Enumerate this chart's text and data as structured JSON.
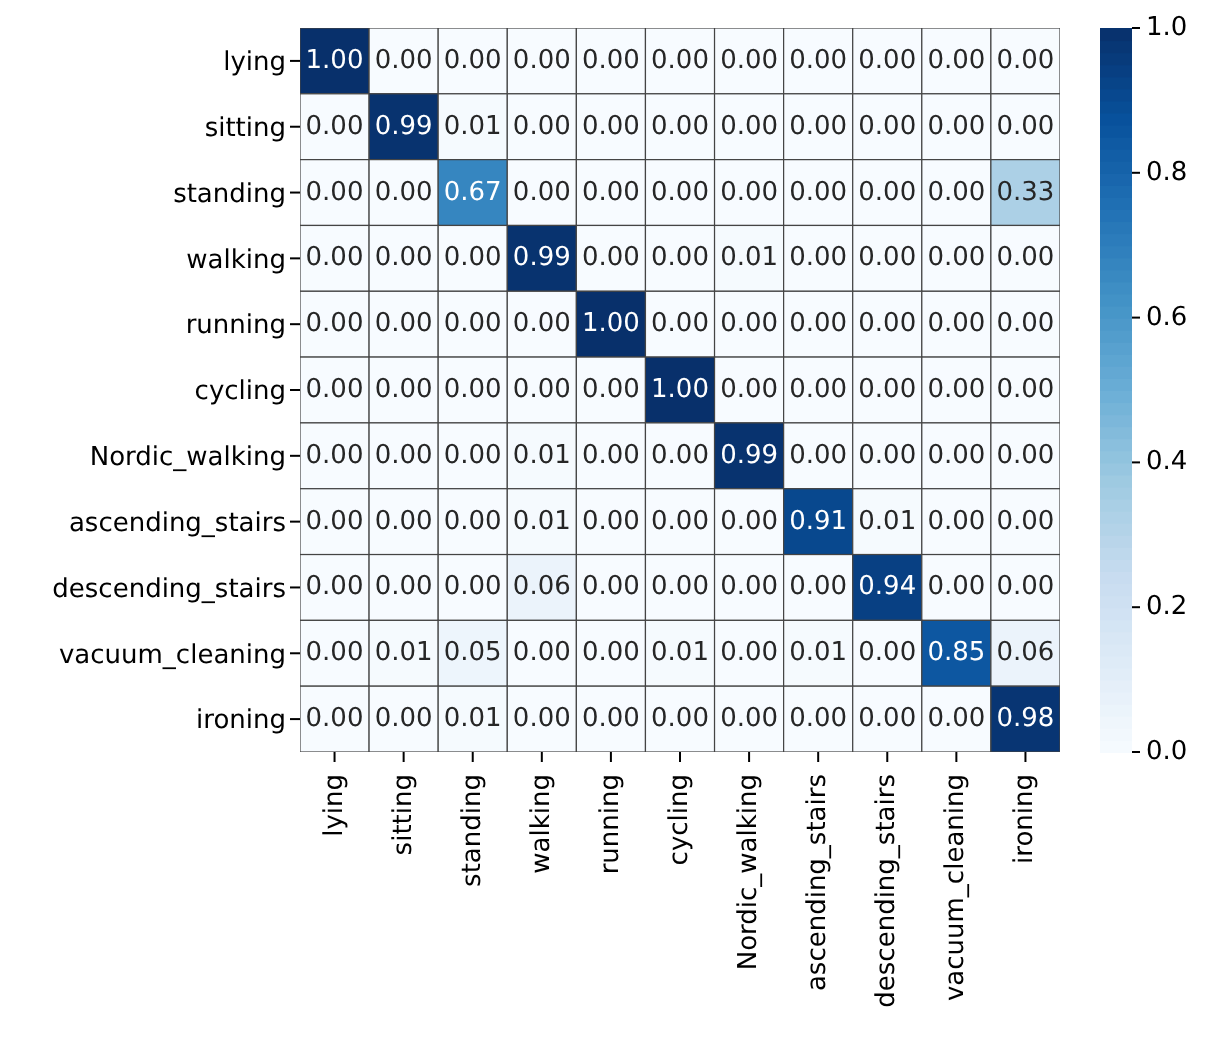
{
  "chart_data": {
    "type": "heatmap",
    "categories": [
      "lying",
      "sitting",
      "standing",
      "walking",
      "running",
      "cycling",
      "Nordic_walking",
      "ascending_stairs",
      "descending_stairs",
      "vacuum_cleaning",
      "ironing"
    ],
    "y_categories": [
      "lying",
      "sitting",
      "standing",
      "walking",
      "running",
      "cycling",
      "Nordic_walking",
      "ascending_stairs",
      "descending_stairs",
      "vacuum_cleaning",
      "ironing"
    ],
    "cells": [
      [
        1.0,
        0.0,
        0.0,
        0.0,
        0.0,
        0.0,
        0.0,
        0.0,
        0.0,
        0.0,
        0.0
      ],
      [
        0.0,
        0.99,
        0.01,
        0.0,
        0.0,
        0.0,
        0.0,
        0.0,
        0.0,
        0.0,
        0.0
      ],
      [
        0.0,
        0.0,
        0.67,
        0.0,
        0.0,
        0.0,
        0.0,
        0.0,
        0.0,
        0.0,
        0.33
      ],
      [
        0.0,
        0.0,
        0.0,
        0.99,
        0.0,
        0.0,
        0.01,
        0.0,
        0.0,
        0.0,
        0.0
      ],
      [
        0.0,
        0.0,
        0.0,
        0.0,
        1.0,
        0.0,
        0.0,
        0.0,
        0.0,
        0.0,
        0.0
      ],
      [
        0.0,
        0.0,
        0.0,
        0.0,
        0.0,
        1.0,
        0.0,
        0.0,
        0.0,
        0.0,
        0.0
      ],
      [
        0.0,
        0.0,
        0.0,
        0.01,
        0.0,
        0.0,
        0.99,
        0.0,
        0.0,
        0.0,
        0.0
      ],
      [
        0.0,
        0.0,
        0.0,
        0.01,
        0.0,
        0.0,
        0.0,
        0.91,
        0.01,
        0.0,
        0.0
      ],
      [
        0.0,
        0.0,
        0.0,
        0.06,
        0.0,
        0.0,
        0.0,
        0.0,
        0.94,
        0.0,
        0.0
      ],
      [
        0.0,
        0.01,
        0.05,
        0.0,
        0.0,
        0.01,
        0.0,
        0.01,
        0.0,
        0.85,
        0.06
      ],
      [
        0.0,
        0.0,
        0.01,
        0.0,
        0.0,
        0.0,
        0.0,
        0.0,
        0.0,
        0.0,
        0.98
      ]
    ],
    "cell_labels": [
      [
        "1.00",
        "0.00",
        "0.00",
        "0.00",
        "0.00",
        "0.00",
        "0.00",
        "0.00",
        "0.00",
        "0.00",
        "0.00"
      ],
      [
        "0.00",
        "0.99",
        "0.01",
        "0.00",
        "0.00",
        "0.00",
        "0.00",
        "0.00",
        "0.00",
        "0.00",
        "0.00"
      ],
      [
        "0.00",
        "0.00",
        "0.67",
        "0.00",
        "0.00",
        "0.00",
        "0.00",
        "0.00",
        "0.00",
        "0.00",
        "0.33"
      ],
      [
        "0.00",
        "0.00",
        "0.00",
        "0.99",
        "0.00",
        "0.00",
        "0.01",
        "0.00",
        "0.00",
        "0.00",
        "0.00"
      ],
      [
        "0.00",
        "0.00",
        "0.00",
        "0.00",
        "1.00",
        "0.00",
        "0.00",
        "0.00",
        "0.00",
        "0.00",
        "0.00"
      ],
      [
        "0.00",
        "0.00",
        "0.00",
        "0.00",
        "0.00",
        "1.00",
        "0.00",
        "0.00",
        "0.00",
        "0.00",
        "0.00"
      ],
      [
        "0.00",
        "0.00",
        "0.00",
        "0.01",
        "0.00",
        "0.00",
        "0.99",
        "0.00",
        "0.00",
        "0.00",
        "0.00"
      ],
      [
        "0.00",
        "0.00",
        "0.00",
        "0.01",
        "0.00",
        "0.00",
        "0.00",
        "0.91",
        "0.01",
        "0.00",
        "0.00"
      ],
      [
        "0.00",
        "0.00",
        "0.00",
        "0.06",
        "0.00",
        "0.00",
        "0.00",
        "0.00",
        "0.94",
        "0.00",
        "0.00"
      ],
      [
        "0.00",
        "0.01",
        "0.05",
        "0.00",
        "0.00",
        "0.01",
        "0.00",
        "0.01",
        "0.00",
        "0.85",
        "0.06"
      ],
      [
        "0.00",
        "0.00",
        "0.01",
        "0.00",
        "0.00",
        "0.00",
        "0.00",
        "0.00",
        "0.00",
        "0.00",
        "0.98"
      ]
    ],
    "clim": [
      0,
      1
    ],
    "cticks": [
      {
        "value": 0,
        "label": "0.0"
      },
      {
        "value": 0.2,
        "label": "0.2"
      },
      {
        "value": 0.4,
        "label": "0.4"
      },
      {
        "value": 0.6,
        "label": "0.6"
      },
      {
        "value": 0.8,
        "label": "0.8"
      },
      {
        "value": 1,
        "label": "1.0"
      }
    ]
  }
}
